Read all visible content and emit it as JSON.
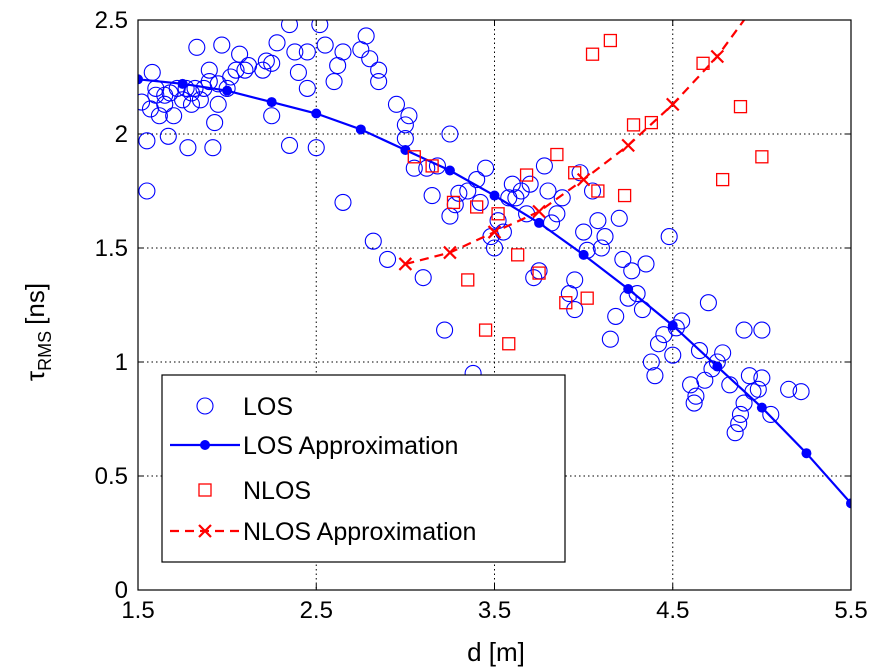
{
  "chart_data": {
    "type": "scatter",
    "xlabel": "d [m]",
    "ylabel_main": "τ",
    "ylabel_sub": "RMS",
    "ylabel_unit": "[ns]",
    "xlim": [
      1.5,
      5.5
    ],
    "ylim": [
      0,
      2.5
    ],
    "x_ticks": [
      "1.5",
      "2.5",
      "3.5",
      "4.5",
      "5.5"
    ],
    "y_ticks": [
      "0",
      "0.5",
      "1",
      "1.5",
      "2",
      "2.5"
    ],
    "grid": true,
    "legend_position": "bottom-left",
    "colors": {
      "los": "#0000ff",
      "nlos": "#ff0000"
    },
    "series": [
      {
        "name": "LOS",
        "marker": "circle-open",
        "points": [
          [
            1.52,
            2.14
          ],
          [
            1.55,
            1.75
          ],
          [
            1.55,
            1.97
          ],
          [
            1.57,
            2.11
          ],
          [
            1.58,
            2.27
          ],
          [
            1.6,
            2.17
          ],
          [
            1.6,
            2.2
          ],
          [
            1.62,
            2.08
          ],
          [
            1.65,
            2.13
          ],
          [
            1.65,
            2.17
          ],
          [
            1.67,
            1.99
          ],
          [
            1.68,
            2.18
          ],
          [
            1.7,
            2.08
          ],
          [
            1.72,
            2.2
          ],
          [
            1.75,
            2.15
          ],
          [
            1.77,
            2.2
          ],
          [
            1.78,
            1.94
          ],
          [
            1.8,
            2.13
          ],
          [
            1.8,
            2.18
          ],
          [
            1.82,
            2.2
          ],
          [
            1.83,
            2.38
          ],
          [
            1.85,
            2.15
          ],
          [
            1.87,
            2.2
          ],
          [
            1.9,
            2.23
          ],
          [
            1.9,
            2.28
          ],
          [
            1.92,
            1.94
          ],
          [
            1.93,
            2.05
          ],
          [
            1.95,
            2.13
          ],
          [
            1.95,
            2.22
          ],
          [
            1.97,
            2.39
          ],
          [
            2.0,
            2.2
          ],
          [
            2.02,
            2.25
          ],
          [
            2.05,
            2.28
          ],
          [
            2.07,
            2.35
          ],
          [
            2.1,
            2.28
          ],
          [
            2.12,
            2.3
          ],
          [
            2.2,
            2.28
          ],
          [
            2.22,
            2.32
          ],
          [
            2.25,
            2.08
          ],
          [
            2.25,
            2.31
          ],
          [
            2.28,
            2.4
          ],
          [
            2.35,
            1.95
          ],
          [
            2.35,
            2.48
          ],
          [
            2.38,
            2.36
          ],
          [
            2.4,
            2.27
          ],
          [
            2.45,
            2.36
          ],
          [
            2.45,
            2.2
          ],
          [
            2.5,
            1.94
          ],
          [
            2.52,
            2.48
          ],
          [
            2.55,
            2.39
          ],
          [
            2.6,
            2.23
          ],
          [
            2.62,
            2.3
          ],
          [
            2.65,
            1.7
          ],
          [
            2.65,
            2.36
          ],
          [
            2.75,
            2.37
          ],
          [
            2.78,
            2.43
          ],
          [
            2.8,
            2.33
          ],
          [
            2.82,
            1.53
          ],
          [
            2.85,
            2.23
          ],
          [
            2.85,
            2.28
          ],
          [
            2.9,
            1.45
          ],
          [
            2.95,
            2.13
          ],
          [
            3.0,
            1.98
          ],
          [
            3.0,
            2.04
          ],
          [
            3.02,
            2.08
          ],
          [
            3.05,
            1.85
          ],
          [
            3.1,
            1.37
          ],
          [
            3.12,
            1.85
          ],
          [
            3.15,
            1.73
          ],
          [
            3.18,
            1.86
          ],
          [
            3.22,
            1.14
          ],
          [
            3.25,
            1.64
          ],
          [
            3.25,
            2.0
          ],
          [
            3.28,
            1.69
          ],
          [
            3.3,
            1.74
          ],
          [
            3.35,
            1.75
          ],
          [
            3.38,
            0.95
          ],
          [
            3.4,
            1.8
          ],
          [
            3.42,
            1.7
          ],
          [
            3.45,
            1.85
          ],
          [
            3.48,
            1.55
          ],
          [
            3.5,
            1.5
          ],
          [
            3.52,
            1.62
          ],
          [
            3.55,
            1.57
          ],
          [
            3.58,
            1.72
          ],
          [
            3.6,
            1.78
          ],
          [
            3.62,
            1.72
          ],
          [
            3.65,
            1.75
          ],
          [
            3.68,
            1.65
          ],
          [
            3.7,
            1.78
          ],
          [
            3.72,
            1.37
          ],
          [
            3.75,
            1.4
          ],
          [
            3.78,
            1.86
          ],
          [
            3.8,
            1.75
          ],
          [
            3.82,
            1.61
          ],
          [
            3.85,
            1.65
          ],
          [
            3.88,
            1.72
          ],
          [
            3.92,
            1.3
          ],
          [
            3.95,
            1.23
          ],
          [
            3.95,
            1.36
          ],
          [
            3.98,
            1.83
          ],
          [
            4.0,
            1.57
          ],
          [
            4.02,
            1.49
          ],
          [
            4.05,
            1.75
          ],
          [
            4.08,
            1.62
          ],
          [
            4.1,
            1.5
          ],
          [
            4.12,
            1.55
          ],
          [
            4.15,
            1.1
          ],
          [
            4.18,
            1.2
          ],
          [
            4.2,
            1.63
          ],
          [
            4.22,
            1.45
          ],
          [
            4.25,
            1.28
          ],
          [
            4.27,
            1.4
          ],
          [
            4.3,
            1.3
          ],
          [
            4.33,
            1.23
          ],
          [
            4.35,
            1.43
          ],
          [
            4.38,
            1.0
          ],
          [
            4.4,
            0.94
          ],
          [
            4.42,
            1.08
          ],
          [
            4.45,
            1.12
          ],
          [
            4.48,
            1.55
          ],
          [
            4.5,
            1.03
          ],
          [
            4.52,
            1.15
          ],
          [
            4.55,
            1.18
          ],
          [
            4.6,
            0.9
          ],
          [
            4.62,
            0.82
          ],
          [
            4.63,
            0.85
          ],
          [
            4.65,
            1.05
          ],
          [
            4.68,
            0.92
          ],
          [
            4.7,
            1.26
          ],
          [
            4.72,
            0.97
          ],
          [
            4.75,
            1.0
          ],
          [
            4.78,
            1.04
          ],
          [
            4.82,
            0.9
          ],
          [
            4.85,
            0.69
          ],
          [
            4.87,
            0.73
          ],
          [
            4.88,
            0.77
          ],
          [
            4.9,
            0.82
          ],
          [
            4.9,
            1.14
          ],
          [
            4.93,
            0.94
          ],
          [
            4.95,
            0.87
          ],
          [
            4.98,
            0.88
          ],
          [
            5.0,
            0.93
          ],
          [
            5.0,
            1.14
          ],
          [
            5.05,
            0.77
          ],
          [
            5.15,
            0.88
          ],
          [
            5.22,
            0.87
          ]
        ]
      },
      {
        "name": "LOS Approximation",
        "marker": "dot-line",
        "points": [
          [
            1.5,
            2.24
          ],
          [
            1.75,
            2.22
          ],
          [
            2.0,
            2.19
          ],
          [
            2.25,
            2.14
          ],
          [
            2.5,
            2.09
          ],
          [
            2.75,
            2.02
          ],
          [
            3.0,
            1.93
          ],
          [
            3.25,
            1.84
          ],
          [
            3.5,
            1.73
          ],
          [
            3.75,
            1.61
          ],
          [
            4.0,
            1.47
          ],
          [
            4.25,
            1.32
          ],
          [
            4.5,
            1.16
          ],
          [
            4.75,
            0.98
          ],
          [
            5.0,
            0.8
          ],
          [
            5.25,
            0.6
          ],
          [
            5.5,
            0.38
          ]
        ]
      },
      {
        "name": "NLOS",
        "marker": "square-open",
        "points": [
          [
            3.05,
            1.9
          ],
          [
            3.15,
            1.86
          ],
          [
            3.27,
            1.7
          ],
          [
            3.35,
            1.36
          ],
          [
            3.4,
            1.68
          ],
          [
            3.45,
            1.14
          ],
          [
            3.52,
            1.65
          ],
          [
            3.58,
            1.08
          ],
          [
            3.63,
            1.47
          ],
          [
            3.68,
            1.82
          ],
          [
            3.75,
            1.39
          ],
          [
            3.85,
            1.91
          ],
          [
            3.9,
            1.26
          ],
          [
            3.95,
            1.83
          ],
          [
            4.02,
            1.28
          ],
          [
            4.05,
            2.35
          ],
          [
            4.08,
            1.75
          ],
          [
            4.15,
            2.41
          ],
          [
            4.23,
            1.73
          ],
          [
            4.28,
            2.04
          ],
          [
            4.38,
            2.05
          ],
          [
            4.67,
            2.31
          ],
          [
            4.78,
            1.8
          ],
          [
            4.88,
            2.12
          ],
          [
            5.0,
            1.9
          ]
        ]
      },
      {
        "name": "NLOS Approximation",
        "marker": "x-dashed",
        "points": [
          [
            3.0,
            1.43
          ],
          [
            3.25,
            1.48
          ],
          [
            3.5,
            1.57
          ],
          [
            3.75,
            1.66
          ],
          [
            4.0,
            1.8
          ],
          [
            4.25,
            1.95
          ],
          [
            4.5,
            2.13
          ],
          [
            4.75,
            2.34
          ],
          [
            4.9,
            2.5
          ]
        ]
      }
    ]
  }
}
